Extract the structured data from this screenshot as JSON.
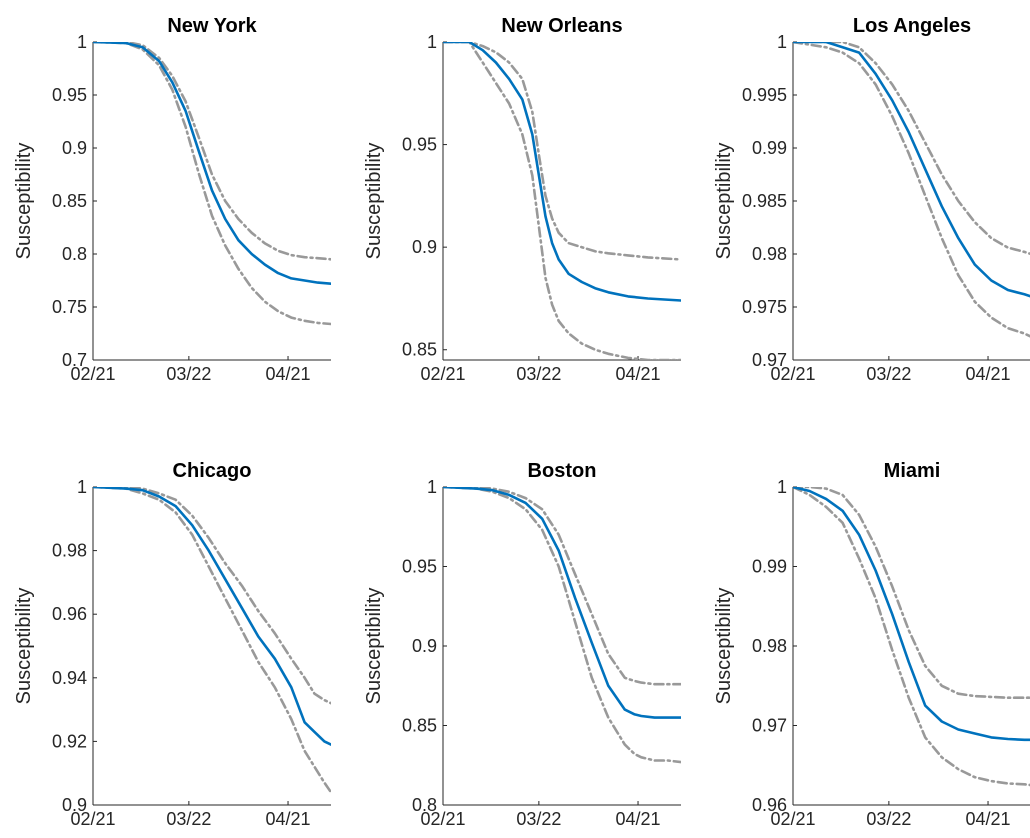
{
  "figure": {
    "ylabel": "Susceptibility",
    "xticks": [
      "02/21",
      "03/22",
      "04/21"
    ],
    "colors": {
      "mean": "#0072BD",
      "bounds": "#999999",
      "axis": "#262626"
    }
  },
  "chart_data": [
    {
      "type": "line",
      "title": "New York",
      "ylabel": "Susceptibility",
      "xlim": [
        0,
        72
      ],
      "ylim": [
        0.7,
        1.0
      ],
      "yticks": [
        0.7,
        0.75,
        0.8,
        0.85,
        0.9,
        0.95,
        1
      ],
      "ytick_labels": [
        "0.7",
        "0.75",
        "0.8",
        "0.85",
        "0.9",
        "0.95",
        "1"
      ],
      "xticks": [
        0,
        29,
        59
      ],
      "xtick_labels": [
        "02/21",
        "03/22",
        "04/21"
      ],
      "series": [
        {
          "style": "solid",
          "x": [
            0,
            10,
            15,
            20,
            24,
            28,
            32,
            36,
            40,
            44,
            48,
            52,
            56,
            60,
            64,
            68,
            72
          ],
          "y": [
            1.0,
            0.999,
            0.995,
            0.982,
            0.962,
            0.935,
            0.897,
            0.86,
            0.833,
            0.813,
            0.8,
            0.79,
            0.782,
            0.777,
            0.775,
            0.773,
            0.772
          ]
        },
        {
          "style": "dashdot",
          "x": [
            0,
            10,
            15,
            20,
            24,
            28,
            32,
            36,
            40,
            44,
            48,
            52,
            56,
            60,
            64,
            68,
            72
          ],
          "y": [
            1.0,
            1.0,
            0.997,
            0.985,
            0.968,
            0.944,
            0.91,
            0.875,
            0.85,
            0.833,
            0.82,
            0.81,
            0.803,
            0.799,
            0.797,
            0.796,
            0.795
          ]
        },
        {
          "style": "dashdot",
          "x": [
            0,
            10,
            15,
            20,
            24,
            28,
            32,
            36,
            40,
            44,
            48,
            52,
            56,
            60,
            64,
            68,
            72
          ],
          "y": [
            1.0,
            0.999,
            0.993,
            0.978,
            0.955,
            0.92,
            0.876,
            0.836,
            0.808,
            0.786,
            0.768,
            0.755,
            0.746,
            0.74,
            0.737,
            0.735,
            0.734
          ]
        }
      ]
    },
    {
      "type": "line",
      "title": "New Orleans",
      "ylabel": "Susceptibility",
      "xlim": [
        0,
        72
      ],
      "ylim": [
        0.845,
        1.0
      ],
      "yticks": [
        0.85,
        0.9,
        0.95,
        1
      ],
      "ytick_labels": [
        "0.85",
        "0.9",
        "0.95",
        "1"
      ],
      "xticks": [
        0,
        29,
        59
      ],
      "xtick_labels": [
        "02/21",
        "03/22",
        "04/21"
      ],
      "series": [
        {
          "style": "solid",
          "x": [
            0,
            8,
            12,
            16,
            20,
            24,
            27,
            29,
            31,
            33,
            35,
            38,
            42,
            46,
            50,
            56,
            62,
            72
          ],
          "y": [
            1.0,
            1.0,
            0.996,
            0.99,
            0.982,
            0.972,
            0.955,
            0.935,
            0.915,
            0.902,
            0.894,
            0.887,
            0.883,
            0.88,
            0.878,
            0.876,
            0.875,
            0.874
          ]
        },
        {
          "style": "dashdot",
          "x": [
            0,
            8,
            12,
            16,
            20,
            24,
            27,
            29,
            31,
            33,
            35,
            38,
            42,
            46,
            50,
            56,
            62,
            72
          ],
          "y": [
            1.0,
            1.0,
            0.998,
            0.995,
            0.99,
            0.982,
            0.966,
            0.945,
            0.925,
            0.914,
            0.907,
            0.902,
            0.9,
            0.898,
            0.897,
            0.896,
            0.895,
            0.894
          ]
        },
        {
          "style": "dashdot",
          "x": [
            0,
            8,
            12,
            16,
            20,
            24,
            27,
            29,
            31,
            33,
            35,
            38,
            42,
            46,
            50,
            56,
            62,
            72
          ],
          "y": [
            1.0,
            1.0,
            0.99,
            0.98,
            0.97,
            0.955,
            0.935,
            0.91,
            0.885,
            0.872,
            0.864,
            0.858,
            0.853,
            0.85,
            0.848,
            0.846,
            0.845,
            0.845
          ]
        }
      ]
    },
    {
      "type": "line",
      "title": "Los Angeles",
      "ylabel": "Susceptibility",
      "xlim": [
        0,
        72
      ],
      "ylim": [
        0.97,
        1.0
      ],
      "yticks": [
        0.97,
        0.975,
        0.98,
        0.985,
        0.99,
        0.995,
        1
      ],
      "ytick_labels": [
        "0.97",
        "0.975",
        "0.98",
        "0.985",
        "0.99",
        "0.995",
        "1"
      ],
      "xticks": [
        0,
        29,
        59
      ],
      "xtick_labels": [
        "02/21",
        "03/22",
        "04/21"
      ],
      "series": [
        {
          "style": "solid",
          "x": [
            0,
            10,
            15,
            20,
            25,
            30,
            35,
            40,
            45,
            50,
            55,
            60,
            65,
            70,
            72
          ],
          "y": [
            1.0,
            1.0,
            0.9995,
            0.999,
            0.997,
            0.9945,
            0.9915,
            0.988,
            0.9845,
            0.9815,
            0.979,
            0.9775,
            0.9766,
            0.9762,
            0.976
          ]
        },
        {
          "style": "dashdot",
          "x": [
            0,
            10,
            15,
            20,
            25,
            30,
            35,
            40,
            45,
            50,
            55,
            60,
            65,
            70,
            72
          ],
          "y": [
            1.0,
            1.0,
            1.0,
            0.9995,
            0.998,
            0.996,
            0.9935,
            0.9905,
            0.9875,
            0.985,
            0.983,
            0.9815,
            0.9806,
            0.9802,
            0.98
          ]
        },
        {
          "style": "dashdot",
          "x": [
            0,
            10,
            15,
            20,
            25,
            30,
            35,
            40,
            45,
            50,
            55,
            60,
            65,
            70,
            72
          ],
          "y": [
            1.0,
            0.9995,
            0.999,
            0.998,
            0.996,
            0.993,
            0.9895,
            0.9855,
            0.9815,
            0.978,
            0.9755,
            0.974,
            0.973,
            0.9725,
            0.9722
          ]
        }
      ]
    },
    {
      "type": "line",
      "title": "Chicago",
      "ylabel": "Susceptibility",
      "xlim": [
        0,
        72
      ],
      "ylim": [
        0.9,
        1.0
      ],
      "yticks": [
        0.9,
        0.92,
        0.94,
        0.96,
        0.98,
        1
      ],
      "ytick_labels": [
        "0.9",
        "0.92",
        "0.94",
        "0.96",
        "0.98",
        "1"
      ],
      "xticks": [
        0,
        29,
        59
      ],
      "xtick_labels": [
        "02/21",
        "03/22",
        "04/21"
      ],
      "series": [
        {
          "style": "solid",
          "x": [
            0,
            10,
            15,
            20,
            25,
            30,
            35,
            40,
            45,
            50,
            55,
            60,
            64,
            67,
            70,
            72
          ],
          "y": [
            1.0,
            0.9995,
            0.999,
            0.997,
            0.994,
            0.988,
            0.98,
            0.971,
            0.962,
            0.953,
            0.946,
            0.937,
            0.926,
            0.923,
            0.92,
            0.919
          ]
        },
        {
          "style": "dashdot",
          "x": [
            0,
            10,
            15,
            20,
            25,
            30,
            35,
            40,
            45,
            50,
            55,
            60,
            64,
            67,
            70,
            72
          ],
          "y": [
            1.0,
            1.0,
            0.9995,
            0.998,
            0.996,
            0.991,
            0.984,
            0.976,
            0.969,
            0.961,
            0.954,
            0.946,
            0.94,
            0.935,
            0.933,
            0.932
          ]
        },
        {
          "style": "dashdot",
          "x": [
            0,
            10,
            15,
            20,
            25,
            30,
            35,
            40,
            45,
            50,
            55,
            60,
            64,
            67,
            70,
            72
          ],
          "y": [
            1.0,
            0.9995,
            0.998,
            0.996,
            0.992,
            0.985,
            0.975,
            0.965,
            0.955,
            0.945,
            0.937,
            0.927,
            0.917,
            0.912,
            0.907,
            0.904
          ]
        }
      ]
    },
    {
      "type": "line",
      "title": "Boston",
      "ylabel": "Susceptibility",
      "xlim": [
        0,
        72
      ],
      "ylim": [
        0.8,
        1.0
      ],
      "yticks": [
        0.8,
        0.85,
        0.9,
        0.95,
        1
      ],
      "ytick_labels": [
        "0.8",
        "0.85",
        "0.9",
        "0.95",
        "1"
      ],
      "xticks": [
        0,
        29,
        59
      ],
      "xtick_labels": [
        "02/21",
        "03/22",
        "04/21"
      ],
      "series": [
        {
          "style": "solid",
          "x": [
            0,
            10,
            15,
            20,
            25,
            30,
            35,
            40,
            45,
            50,
            55,
            58,
            60,
            64,
            68,
            72
          ],
          "y": [
            1.0,
            0.999,
            0.998,
            0.995,
            0.99,
            0.98,
            0.96,
            0.93,
            0.902,
            0.875,
            0.86,
            0.857,
            0.856,
            0.855,
            0.855,
            0.855
          ]
        },
        {
          "style": "dashdot",
          "x": [
            0,
            10,
            15,
            20,
            25,
            30,
            35,
            40,
            45,
            50,
            55,
            58,
            60,
            64,
            68,
            72
          ],
          "y": [
            1.0,
            1.0,
            0.999,
            0.997,
            0.993,
            0.986,
            0.97,
            0.945,
            0.92,
            0.895,
            0.88,
            0.878,
            0.877,
            0.876,
            0.876,
            0.876
          ]
        },
        {
          "style": "dashdot",
          "x": [
            0,
            10,
            15,
            20,
            25,
            30,
            35,
            40,
            45,
            50,
            55,
            58,
            60,
            64,
            68,
            72
          ],
          "y": [
            1.0,
            0.999,
            0.997,
            0.993,
            0.986,
            0.973,
            0.95,
            0.915,
            0.88,
            0.855,
            0.838,
            0.832,
            0.83,
            0.828,
            0.828,
            0.827
          ]
        }
      ]
    },
    {
      "type": "line",
      "title": "Miami",
      "ylabel": "Susceptibility",
      "xlim": [
        0,
        72
      ],
      "ylim": [
        0.96,
        1.0
      ],
      "yticks": [
        0.96,
        0.97,
        0.98,
        0.99,
        1
      ],
      "ytick_labels": [
        "0.96",
        "0.97",
        "0.98",
        "0.99",
        "1"
      ],
      "xticks": [
        0,
        29,
        59
      ],
      "xtick_labels": [
        "02/21",
        "03/22",
        "04/21"
      ],
      "series": [
        {
          "style": "solid",
          "x": [
            0,
            5,
            10,
            15,
            20,
            25,
            30,
            35,
            40,
            45,
            50,
            55,
            60,
            65,
            70,
            72
          ],
          "y": [
            1.0,
            0.9995,
            0.9985,
            0.997,
            0.994,
            0.9895,
            0.984,
            0.978,
            0.9725,
            0.9705,
            0.9695,
            0.969,
            0.9685,
            0.9683,
            0.9682,
            0.9682
          ]
        },
        {
          "style": "dashdot",
          "x": [
            0,
            5,
            10,
            15,
            20,
            25,
            30,
            35,
            40,
            45,
            50,
            55,
            60,
            65,
            70,
            72
          ],
          "y": [
            1.0,
            1.0,
            0.9998,
            0.999,
            0.9965,
            0.9925,
            0.9875,
            0.982,
            0.9775,
            0.975,
            0.974,
            0.9737,
            0.9736,
            0.9735,
            0.9735,
            0.9735
          ]
        },
        {
          "style": "dashdot",
          "x": [
            0,
            5,
            10,
            15,
            20,
            25,
            30,
            35,
            40,
            45,
            50,
            55,
            60,
            65,
            70,
            72
          ],
          "y": [
            1.0,
            0.999,
            0.9975,
            0.9955,
            0.991,
            0.986,
            0.9795,
            0.9735,
            0.9685,
            0.966,
            0.9645,
            0.9635,
            0.963,
            0.9627,
            0.9626,
            0.9625
          ]
        }
      ]
    }
  ]
}
